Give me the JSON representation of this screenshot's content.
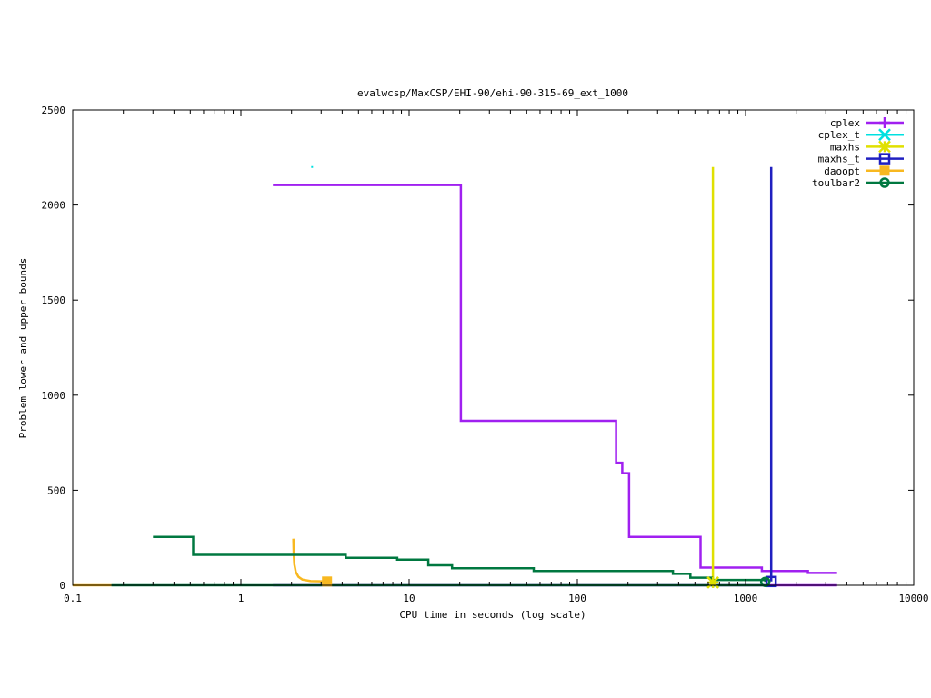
{
  "chart_data": {
    "type": "line",
    "title": "evalwcsp/MaxCSP/EHI-90/ehi-90-315-69_ext_1000",
    "xlabel": "CPU time in seconds (log scale)",
    "ylabel": "Problem lower and upper bounds",
    "x_scale": "log",
    "xlim": [
      0.1,
      10000
    ],
    "ylim": [
      0,
      2500
    ],
    "x_ticks": [
      0.1,
      1,
      10,
      100,
      1000,
      10000
    ],
    "x_tick_labels": [
      "0.1",
      "1",
      "10",
      "100",
      "1000",
      "10000"
    ],
    "y_ticks": [
      0,
      500,
      1000,
      1500,
      2000,
      2500
    ],
    "y_tick_labels": [
      "0",
      "500",
      "1000",
      "1500",
      "2000",
      "2500"
    ],
    "grid": false,
    "legend_position": "top-right",
    "series": [
      {
        "name": "cplex",
        "color": "#a020f0",
        "marker": "plus",
        "step": true,
        "points": [
          [
            1.55,
            2105
          ],
          [
            20.3,
            2105
          ],
          [
            20.3,
            865
          ],
          [
            170,
            865
          ],
          [
            170,
            645
          ],
          [
            185,
            645
          ],
          [
            185,
            590
          ],
          [
            203,
            590
          ],
          [
            203,
            255
          ],
          [
            540,
            255
          ],
          [
            540,
            93
          ],
          [
            1250,
            93
          ],
          [
            1250,
            75
          ],
          [
            2350,
            75
          ],
          [
            2350,
            65
          ],
          [
            3500,
            65
          ]
        ]
      },
      {
        "name": "cplex",
        "color": "#a020f0",
        "marker": "none",
        "step": true,
        "points": [
          [
            1.55,
            0
          ],
          [
            3500,
            0
          ]
        ]
      },
      {
        "name": "cplex_t",
        "color": "#00e0e0",
        "marker": "x",
        "step": false,
        "points": [
          [
            2.65,
            2200
          ]
        ]
      },
      {
        "name": "maxhs",
        "color": "#e0e000",
        "marker": "star",
        "step": true,
        "points": [
          [
            640,
            2200
          ],
          [
            640,
            15
          ]
        ]
      },
      {
        "name": "maxhs_t",
        "color": "#2020c0",
        "marker": "square",
        "step": true,
        "points": [
          [
            1420,
            2200
          ],
          [
            1420,
            20
          ]
        ]
      },
      {
        "name": "daoopt",
        "color": "#f8b820",
        "marker": "filled-square",
        "step": false,
        "points": [
          [
            2.05,
            245
          ],
          [
            2.06,
            165
          ],
          [
            2.08,
            110
          ],
          [
            2.12,
            70
          ],
          [
            2.2,
            45
          ],
          [
            2.32,
            30
          ],
          [
            2.6,
            22
          ],
          [
            3.25,
            20
          ]
        ]
      },
      {
        "name": "daoopt",
        "color": "#f8b820",
        "marker": "none",
        "step": true,
        "points": [
          [
            0.1,
            0
          ],
          [
            0.17,
            0
          ]
        ]
      },
      {
        "name": "toulbar2",
        "color": "#007840",
        "marker": "circle",
        "step": true,
        "points": [
          [
            0.3,
            255
          ],
          [
            0.52,
            255
          ],
          [
            0.52,
            160
          ],
          [
            4.2,
            160
          ],
          [
            4.2,
            145
          ],
          [
            8.5,
            145
          ],
          [
            8.5,
            135
          ],
          [
            13,
            135
          ],
          [
            13,
            105
          ],
          [
            18,
            105
          ],
          [
            18,
            90
          ],
          [
            55,
            90
          ],
          [
            55,
            75
          ],
          [
            370,
            75
          ],
          [
            370,
            60
          ],
          [
            470,
            60
          ],
          [
            470,
            40
          ],
          [
            630,
            40
          ],
          [
            630,
            28
          ],
          [
            1310,
            28
          ],
          [
            1310,
            18
          ]
        ]
      },
      {
        "name": "toulbar2",
        "color": "#007840",
        "marker": "none",
        "step": true,
        "points": [
          [
            0.17,
            0
          ],
          [
            1310,
            0
          ]
        ]
      }
    ]
  }
}
